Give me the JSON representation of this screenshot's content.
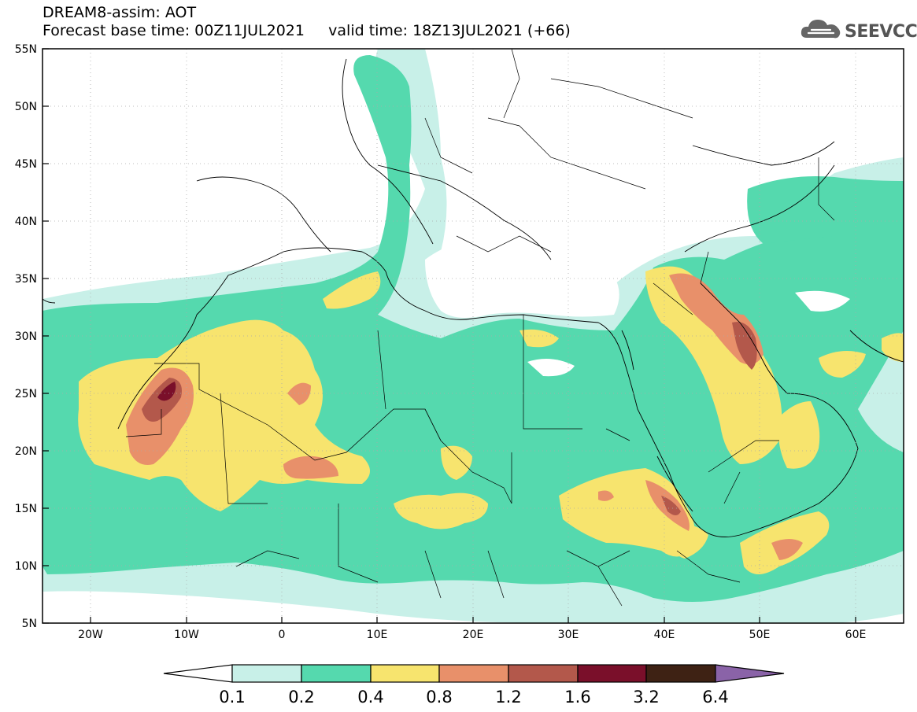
{
  "header": {
    "line1": "DREAM8-assim: AOT",
    "line2": "Forecast base time: 00Z11JUL2021     valid time: 18Z13JUL2021 (+66)"
  },
  "logo": {
    "text": "SEEVCCC",
    "icon": "cloud-icon"
  },
  "map": {
    "lat_labels": [
      "55N",
      "50N",
      "45N",
      "40N",
      "35N",
      "30N",
      "25N",
      "20N",
      "15N",
      "10N",
      "5N"
    ],
    "lon_labels": [
      "20W",
      "10W",
      "0",
      "10E",
      "20E",
      "30E",
      "40E",
      "50E",
      "60E"
    ],
    "field": "AOT"
  },
  "colorbar": {
    "labels": [
      "0.1",
      "0.2",
      "0.4",
      "0.8",
      "1.2",
      "1.6",
      "3.2",
      "6.4"
    ],
    "colors": [
      "#ffffff",
      "#c8f0e8",
      "#55d9ae",
      "#f7e46e",
      "#e8906a",
      "#b3584b",
      "#7a0f2a",
      "#3e2214",
      "#8a63a8"
    ]
  },
  "colors": {
    "level_0_2": "#55d9ae",
    "level_0_1": "#c8f0e8",
    "level_0_4": "#f7e46e",
    "level_0_8": "#e8906a",
    "level_1_2": "#b3584b",
    "level_1_6": "#7a0f2a"
  }
}
